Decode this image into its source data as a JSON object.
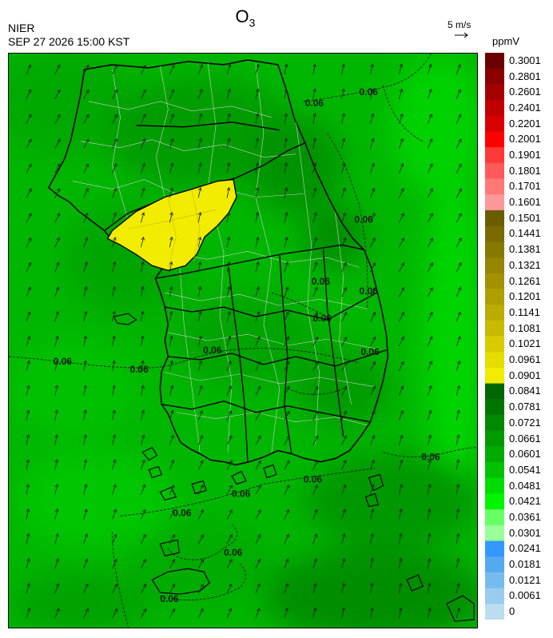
{
  "header": {
    "title_main": "O",
    "title_sub": "3",
    "agency": "NIER",
    "datetime": "SEP 27 2026 15:00 KST",
    "vector_reference": "5 m/s"
  },
  "legend": {
    "unit": "ppmV",
    "bins": [
      {
        "label": "0.3001",
        "color": "#6b0000"
      },
      {
        "label": "0.2801",
        "color": "#8a0000"
      },
      {
        "label": "0.2601",
        "color": "#a50000"
      },
      {
        "label": "0.2401",
        "color": "#c00000"
      },
      {
        "label": "0.2201",
        "color": "#d80000"
      },
      {
        "label": "0.2001",
        "color": "#ff0000"
      },
      {
        "label": "0.1901",
        "color": "#ff3838"
      },
      {
        "label": "0.1801",
        "color": "#ff5a5a"
      },
      {
        "label": "0.1701",
        "color": "#ff7878"
      },
      {
        "label": "0.1601",
        "color": "#ff9898"
      },
      {
        "label": "0.1501",
        "color": "#6b5c00"
      },
      {
        "label": "0.1441",
        "color": "#7a6a00"
      },
      {
        "label": "0.1381",
        "color": "#877800"
      },
      {
        "label": "0.1321",
        "color": "#958500"
      },
      {
        "label": "0.1261",
        "color": "#a29200"
      },
      {
        "label": "0.1201",
        "color": "#ae9f00"
      },
      {
        "label": "0.1141",
        "color": "#bbac00"
      },
      {
        "label": "0.1081",
        "color": "#c8ba00"
      },
      {
        "label": "0.1021",
        "color": "#d8cc00"
      },
      {
        "label": "0.0961",
        "color": "#e5dc00"
      },
      {
        "label": "0.0901",
        "color": "#f2ec00"
      },
      {
        "label": "0.0841",
        "color": "#006600"
      },
      {
        "label": "0.0781",
        "color": "#007600"
      },
      {
        "label": "0.0721",
        "color": "#008800"
      },
      {
        "label": "0.0661",
        "color": "#009a00"
      },
      {
        "label": "0.0601",
        "color": "#00ab00"
      },
      {
        "label": "0.0541",
        "color": "#00c200"
      },
      {
        "label": "0.0481",
        "color": "#00dc00"
      },
      {
        "label": "0.0421",
        "color": "#00f500"
      },
      {
        "label": "0.0361",
        "color": "#66ff66"
      },
      {
        "label": "0.0301",
        "color": "#99ff99"
      },
      {
        "label": "0.0241",
        "color": "#3399ff"
      },
      {
        "label": "0.0181",
        "color": "#55aaee"
      },
      {
        "label": "0.0121",
        "color": "#77bbee"
      },
      {
        "label": "0.0061",
        "color": "#99ccee"
      },
      {
        "label": "0",
        "color": "#bbddf0"
      }
    ]
  },
  "map": {
    "contour_labels": [
      "0.06"
    ]
  },
  "colors": {
    "background_field": "#00b800",
    "coastline": "#000000",
    "district_lines": "#cfcfcf",
    "high_zone": "#f2ec00",
    "wind_arrow": "#1f1f1f"
  }
}
